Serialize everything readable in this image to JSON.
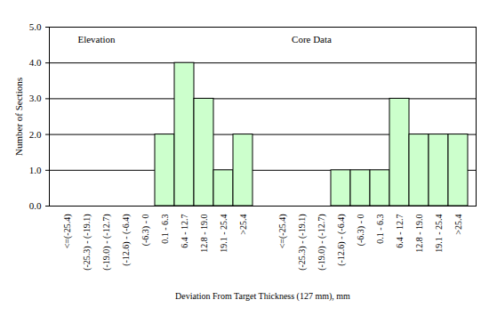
{
  "chart_data": {
    "type": "bar",
    "categories": [
      "<=(-25.4)",
      "(-25.3) - (-19.1)",
      "(-19.0) - (-12.7)",
      "(-12.6) - (-6.4)",
      "(-6.3) - 0",
      "0.1 - 6.3",
      "6.4 - 12.7",
      "12.8 - 19.0",
      "19.1 - 25.4",
      ">25.4",
      null,
      "<=(-25.4)",
      "(-25.3) - (-19.1)",
      "(-19.0) - (-12.7)",
      "(-12.6) - (-6.4)",
      "(-6.3) - 0",
      "0.1 - 6.3",
      "6.4 - 12.7",
      "12.8 - 19.0",
      "19.1 - 25.4",
      ">25.4"
    ],
    "values": [
      0,
      0,
      0,
      0,
      0,
      2,
      4,
      3,
      1,
      2,
      null,
      0,
      0,
      0,
      1,
      1,
      1,
      3,
      2,
      2,
      2
    ],
    "color": "#ccffcc",
    "xlabel": "Deviation From Target Thickness (127 mm), mm",
    "ylabel": "Number of Sections",
    "ylim": [
      0,
      5
    ],
    "yticks": [
      0,
      1,
      2,
      3,
      4,
      5
    ],
    "grid": true,
    "annotations": [
      "Elevation",
      "Core Data"
    ]
  }
}
